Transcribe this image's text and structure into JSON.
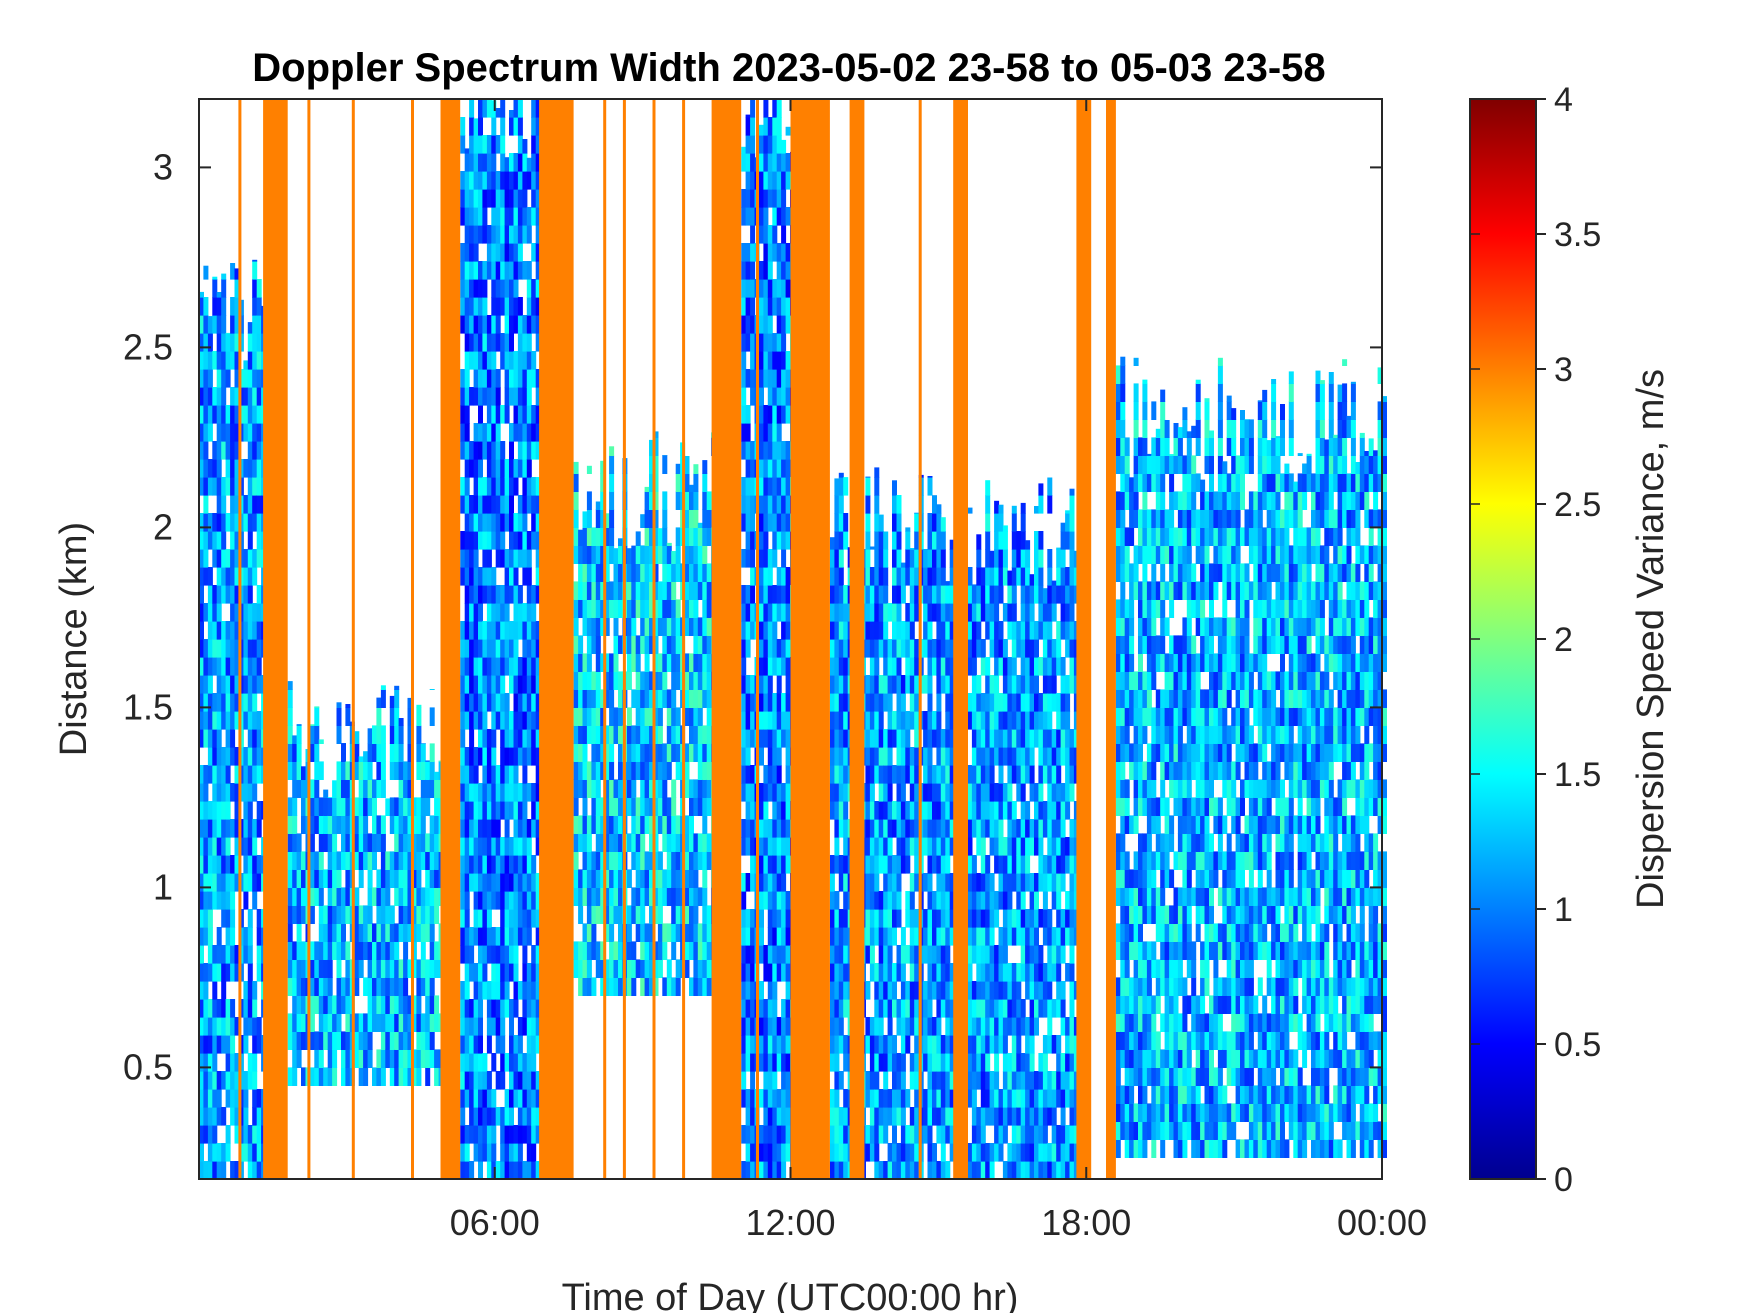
{
  "chart_data": {
    "type": "heatmap",
    "title": "Doppler Spectrum Width 2023-05-02 23-58 to 05-03 23-58",
    "xlabel": "Time of Day (UTC00:00 hr)",
    "ylabel": "Distance (km)",
    "colorbar_label": "Dispersion Speed Variance, m/s",
    "colormap": "jet",
    "xlim_hours": [
      0,
      24
    ],
    "ylim_km": [
      0.19,
      3.19
    ],
    "clim": [
      0,
      4
    ],
    "x_ticks": [
      {
        "value": 6,
        "label": "06:00"
      },
      {
        "value": 12,
        "label": "12:00"
      },
      {
        "value": 18,
        "label": "18:00"
      },
      {
        "value": 24,
        "label": "00:00"
      }
    ],
    "y_ticks": [
      {
        "value": 0.5,
        "label": "0.5"
      },
      {
        "value": 1,
        "label": "1"
      },
      {
        "value": 1.5,
        "label": "1.5"
      },
      {
        "value": 2,
        "label": "2"
      },
      {
        "value": 2.5,
        "label": "2.5"
      },
      {
        "value": 3,
        "label": "3"
      }
    ],
    "colorbar_ticks": [
      {
        "value": 0,
        "label": "0"
      },
      {
        "value": 0.5,
        "label": "0.5"
      },
      {
        "value": 1,
        "label": "1"
      },
      {
        "value": 1.5,
        "label": "1.5"
      },
      {
        "value": 2,
        "label": "2"
      },
      {
        "value": 2.5,
        "label": "2.5"
      },
      {
        "value": 3,
        "label": "3"
      },
      {
        "value": 3.5,
        "label": "3.5"
      },
      {
        "value": 4,
        "label": "4"
      }
    ],
    "saturated_value": 3.0,
    "saturated_columns_hours": [
      [
        1.3,
        1.8
      ],
      [
        4.9,
        5.3
      ],
      [
        6.9,
        7.6
      ],
      [
        10.4,
        11.0
      ],
      [
        12.0,
        12.8
      ],
      [
        13.2,
        13.5
      ],
      [
        15.3,
        15.6
      ],
      [
        17.8,
        18.1
      ],
      [
        18.4,
        18.6
      ]
    ],
    "thin_saturated_lines_hours": [
      0.8,
      2.2,
      3.1,
      4.3,
      8.2,
      8.6,
      9.2,
      9.8,
      11.3,
      14.6
    ],
    "echo_regions": [
      {
        "x_start_h": 0.0,
        "x_end_h": 1.3,
        "top_km": 2.6,
        "bottom_km": 0.19,
        "typical_value": 1.1
      },
      {
        "x_start_h": 1.8,
        "x_end_h": 4.9,
        "top_km": 1.4,
        "bottom_km": 0.45,
        "typical_value": 1.2
      },
      {
        "x_start_h": 5.3,
        "x_end_h": 6.9,
        "top_km": 3.19,
        "bottom_km": 0.19,
        "typical_value": 1.0
      },
      {
        "x_start_h": 7.6,
        "x_end_h": 10.4,
        "top_km": 2.1,
        "bottom_km": 0.7,
        "typical_value": 1.3
      },
      {
        "x_start_h": 11.0,
        "x_end_h": 12.0,
        "top_km": 3.19,
        "bottom_km": 0.19,
        "typical_value": 1.0
      },
      {
        "x_start_h": 12.8,
        "x_end_h": 17.8,
        "top_km": 2.0,
        "bottom_km": 0.19,
        "typical_value": 1.1
      },
      {
        "x_start_h": 18.6,
        "x_end_h": 24.0,
        "top_km": 2.3,
        "bottom_km": 0.25,
        "typical_value": 1.2
      }
    ],
    "grid": false
  }
}
